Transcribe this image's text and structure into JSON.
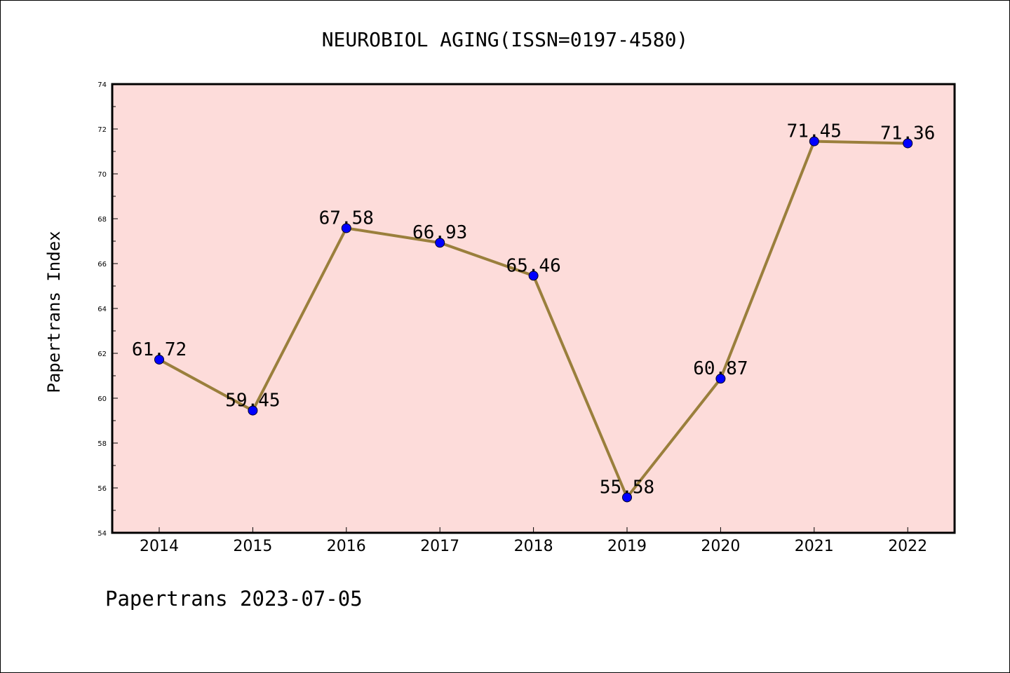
{
  "chart_data": {
    "type": "line",
    "title": "NEUROBIOL AGING(ISSN=0197-4580)",
    "ylabel": "Papertrans Index",
    "xlabel": "",
    "categories": [
      "2014",
      "2015",
      "2016",
      "2017",
      "2018",
      "2019",
      "2020",
      "2021",
      "2022"
    ],
    "values": [
      61.72,
      59.45,
      67.58,
      66.93,
      65.46,
      55.58,
      60.87,
      71.45,
      71.36
    ],
    "data_labels": [
      "61.72",
      "59.45",
      "67.58",
      "66.93",
      "65.46",
      "55.58",
      "60.87",
      "71.45",
      "71.36"
    ],
    "ylim": [
      54,
      74
    ],
    "yticks": [
      54,
      56,
      58,
      60,
      62,
      64,
      66,
      68,
      70,
      72,
      74
    ],
    "grid": false,
    "colors": {
      "plot_background": "#fddcda",
      "line": "#9a7f3c",
      "marker": "#0000ff"
    }
  },
  "footer": "Papertrans 2023-07-05"
}
